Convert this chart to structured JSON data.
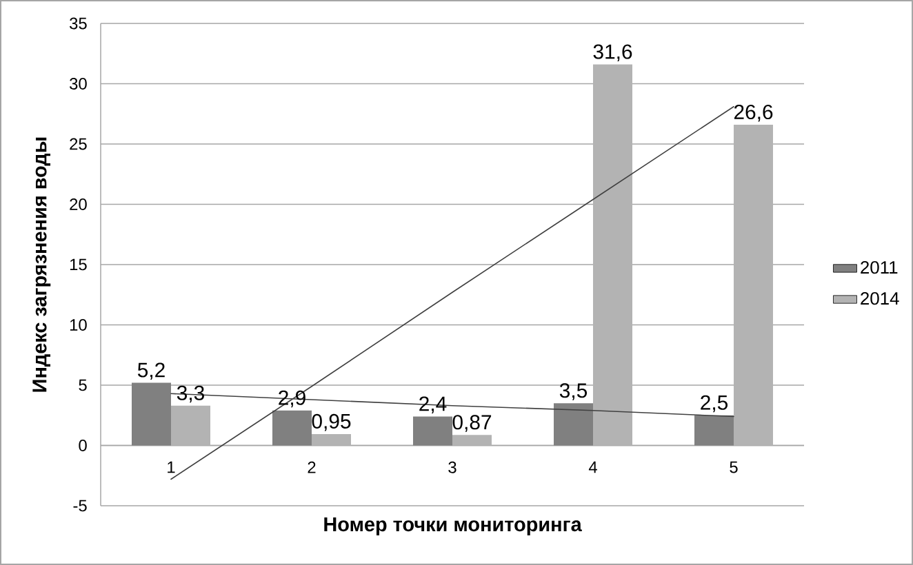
{
  "chart_data": {
    "type": "bar",
    "xlabel": "Номер точки мониторинга",
    "ylabel": "Индекс загрязнения воды",
    "x": [
      1,
      2,
      3,
      4,
      5
    ],
    "xlim": [
      0.5,
      5.5
    ],
    "xticks": [
      1,
      2,
      3,
      4,
      5
    ],
    "ylim": [
      -5,
      35
    ],
    "yticks": [
      -5,
      0,
      5,
      10,
      15,
      20,
      25,
      30,
      35
    ],
    "grid": "y",
    "legend": "right",
    "series": [
      {
        "name": "2011",
        "color": "#808080",
        "values": [
          5.2,
          2.9,
          2.4,
          3.5,
          2.5
        ],
        "value_labels": [
          "5,2",
          "2,9",
          "2,4",
          "3,5",
          "2,5"
        ]
      },
      {
        "name": "2014",
        "color": "#b3b3b3",
        "values": [
          3.3,
          0.95,
          0.87,
          31.6,
          26.6
        ],
        "value_labels": [
          "3,3",
          "0,95",
          "0,87",
          "31,6",
          "26,6"
        ]
      },
      {
        "type": "line",
        "color": "#404040",
        "values": [
          4.3,
          3.8,
          3.3,
          2.9,
          2.4
        ]
      },
      {
        "type": "line",
        "color": "#404040",
        "values": [
          -2.8,
          4.9,
          12.7,
          20.4,
          28.1
        ]
      }
    ]
  }
}
